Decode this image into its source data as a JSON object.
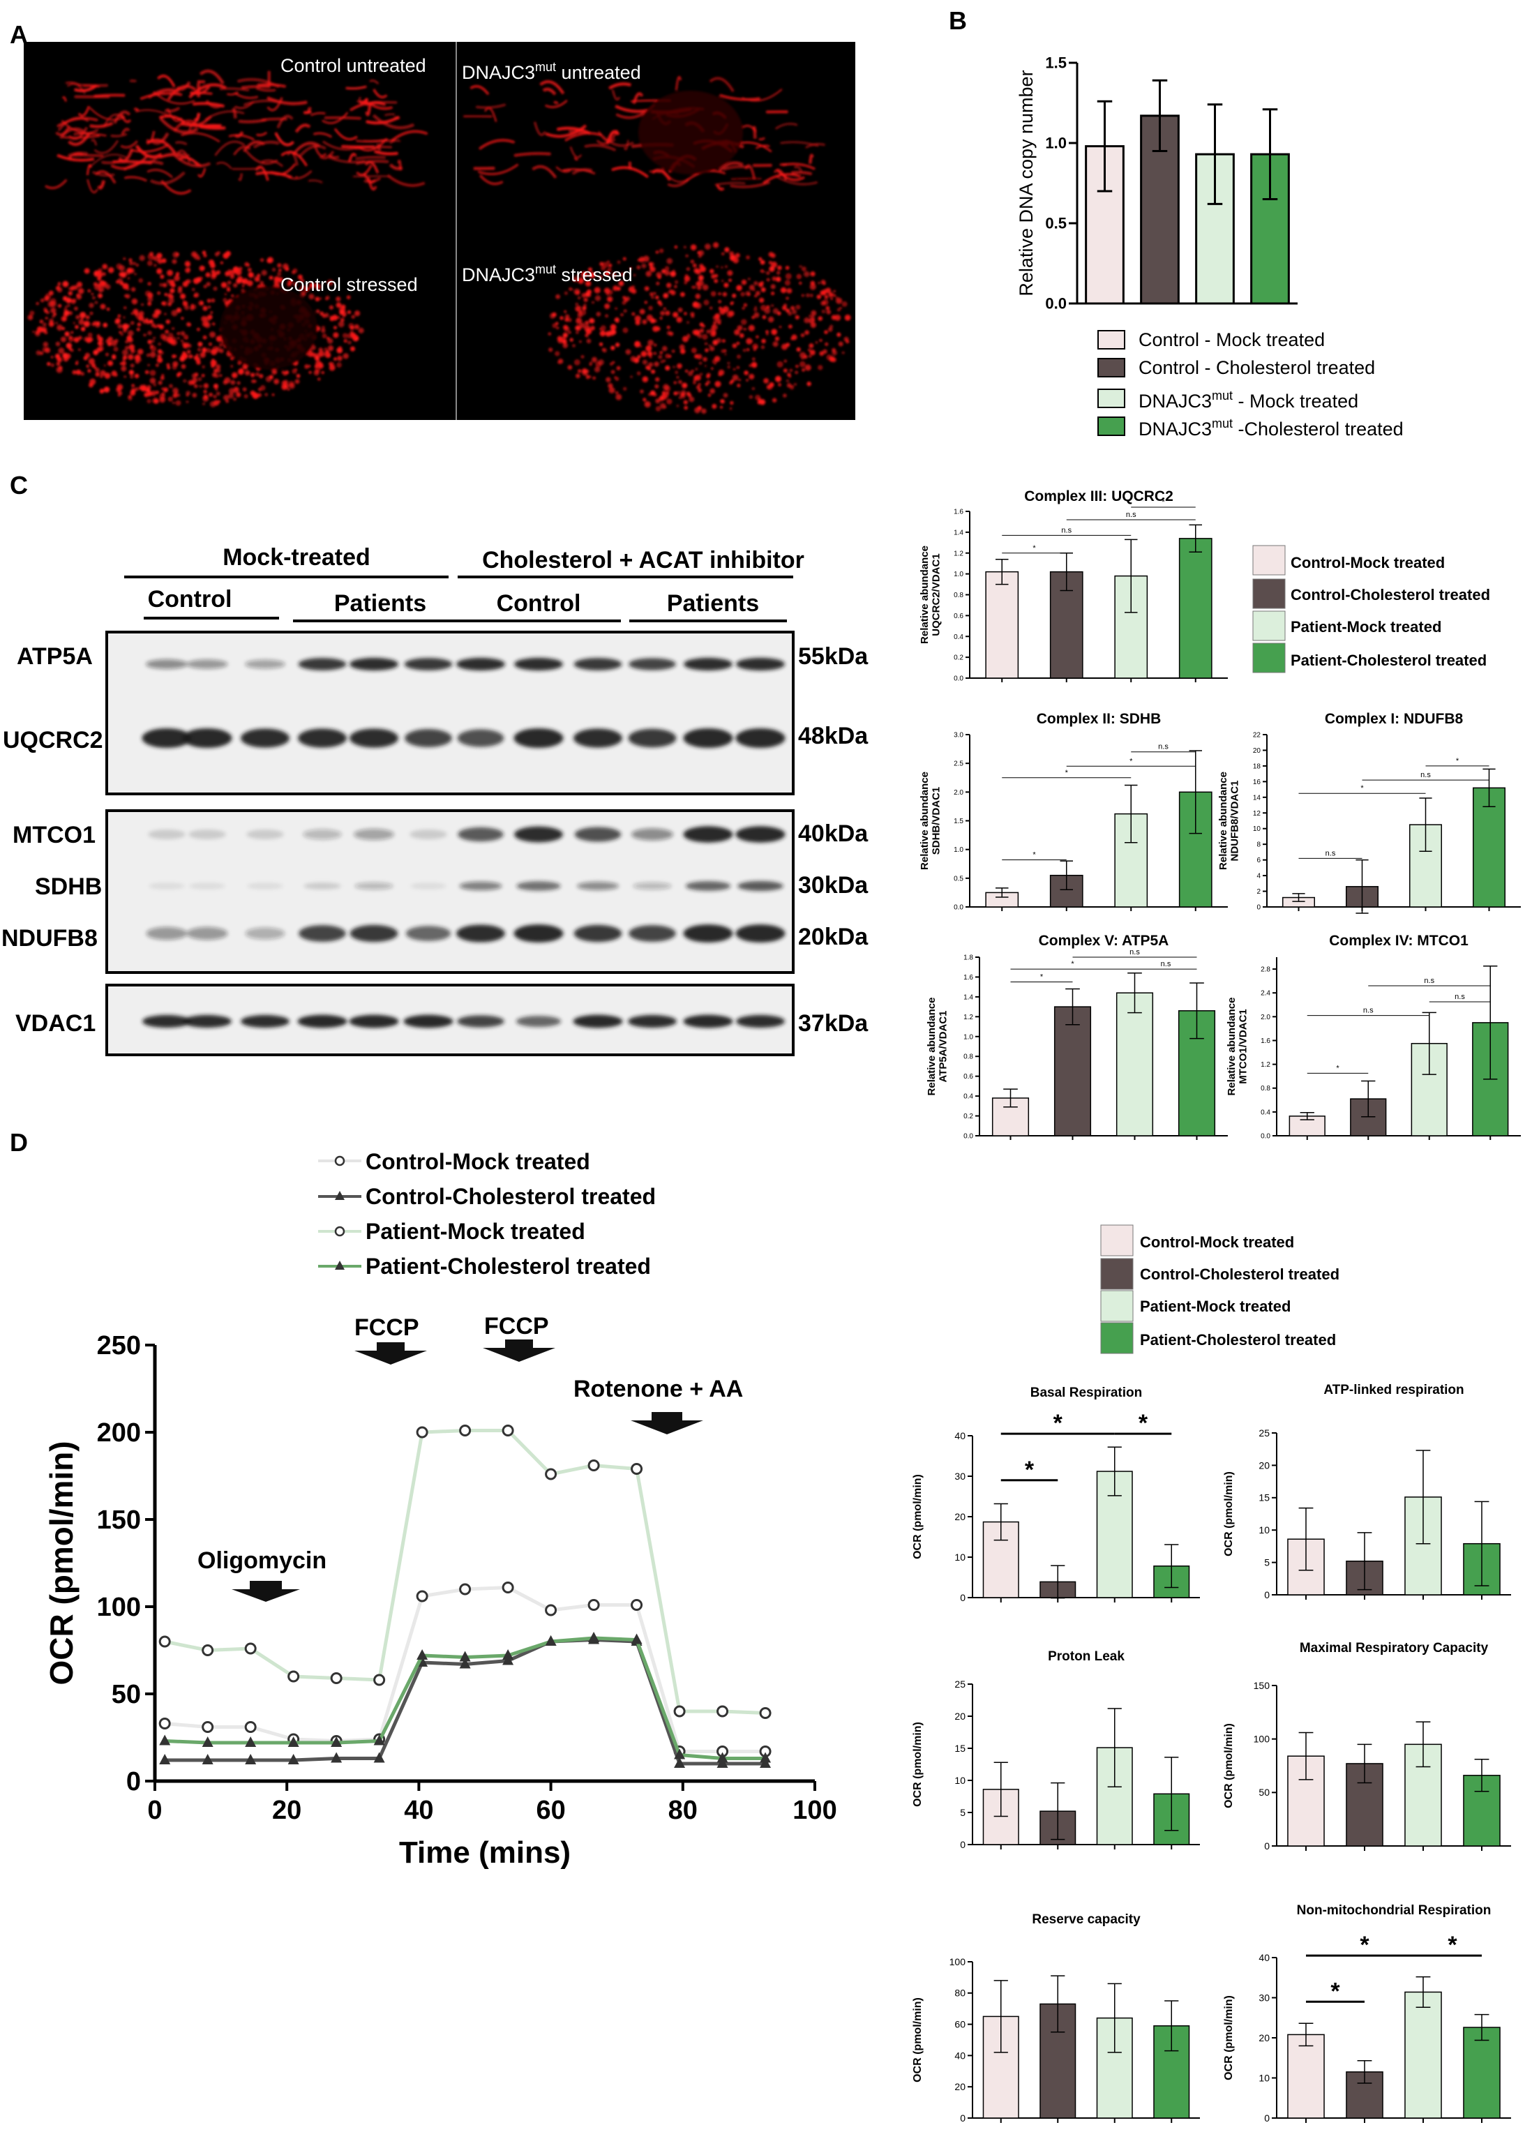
{
  "panels": {
    "A": "A",
    "B": "B",
    "C": "C",
    "D": "D"
  },
  "colors": {
    "control_mock": "#f3e6e6",
    "control_chol": "#5b4d4d",
    "patient_mock": "#dcefdc",
    "patient_chol": "#46a04f",
    "micro_red": "#ff1a1a",
    "blot_band": "#1a1a1a"
  },
  "panel_A": {
    "labels": {
      "tl": "Control untreated",
      "tr_pre": "DNAJC3",
      "tr_sup": "mut",
      "tr_post": " untreated",
      "bl": "Control stressed",
      "br_pre": "DNAJC3",
      "br_sup": "mut",
      "br_post": "   stressed"
    }
  },
  "panel_B": {
    "legend": [
      {
        "pre": "Control - Mock treated",
        "sup": "",
        "post": ""
      },
      {
        "pre": "Control - Cholesterol treated",
        "sup": "",
        "post": ""
      },
      {
        "pre": "DNAJC3",
        "sup": "mut",
        "post": " - Mock treated"
      },
      {
        "pre": "DNAJC3",
        "sup": "mut",
        "post": " -Cholesterol treated"
      }
    ]
  },
  "panel_C_blot": {
    "header_left": "Mock-treated",
    "header_right": "Cholesterol + ACAT inhibitor",
    "groups": [
      "Control",
      "Patients",
      "Control",
      "Patients"
    ],
    "proteins": [
      "ATP5A",
      "UQCRC2",
      "MTCO1",
      "SDHB",
      "NDUFB8",
      "VDAC1"
    ],
    "sizes": [
      "55kDa",
      "48kDa",
      "40kDa",
      "30kDa",
      "20kDa",
      "37kDa"
    ],
    "band_intensity": {
      "ATP5A": [
        0.45,
        0.4,
        0.35,
        0.85,
        0.9,
        0.85,
        0.9,
        0.9,
        0.85,
        0.8,
        0.9,
        0.9
      ],
      "UQCRC2": [
        0.95,
        0.95,
        0.9,
        0.9,
        0.9,
        0.8,
        0.75,
        0.95,
        0.9,
        0.85,
        0.95,
        0.95
      ],
      "MTCO1": [
        0.15,
        0.15,
        0.15,
        0.25,
        0.35,
        0.15,
        0.7,
        0.9,
        0.75,
        0.45,
        0.95,
        0.95
      ],
      "SDHB": [
        0.08,
        0.08,
        0.08,
        0.15,
        0.25,
        0.08,
        0.5,
        0.6,
        0.45,
        0.25,
        0.65,
        0.7
      ],
      "NDUFB8": [
        0.4,
        0.4,
        0.3,
        0.8,
        0.85,
        0.65,
        0.9,
        0.95,
        0.85,
        0.8,
        0.95,
        0.95
      ],
      "VDAC1": [
        0.9,
        0.9,
        0.9,
        0.95,
        0.95,
        0.95,
        0.8,
        0.65,
        0.95,
        0.9,
        0.95,
        0.9
      ]
    }
  },
  "panel_C_legend": [
    "Control-Mock treated",
    "Control-Cholesterol treated",
    "Patient-Mock treated",
    "Patient-Cholesterol treated"
  ],
  "panel_D_line_legend": [
    "Control-Mock treated",
    "Control-Cholesterol treated",
    "Patient-Mock treated",
    "Patient-Cholesterol treated"
  ],
  "panel_D_bar_legend": [
    "Control-Mock treated",
    "Control-Cholesterol treated",
    "Patient-Mock treated",
    "Patient-Cholesterol treated"
  ],
  "panel_D_annotations": {
    "oligomycin": "Oligomycin",
    "fccp1": "FCCP",
    "fccp2": "FCCP",
    "rotenone": "Rotenone + AA"
  },
  "chart_data": [
    {
      "id": "B",
      "type": "bar",
      "title": "",
      "xlabel": "",
      "ylabel": "Relative DNA copy number",
      "ylim": [
        0,
        1.5
      ],
      "yticks": [
        "0.0",
        "0.5",
        "1.0",
        "1.5"
      ],
      "values": [
        0.98,
        1.17,
        0.93,
        0.93
      ],
      "errors": [
        0.28,
        0.22,
        0.31,
        0.28
      ],
      "annotations": []
    },
    {
      "id": "C1",
      "type": "bar",
      "title": "Complex III: UQCRC2",
      "xlabel": "",
      "ylabel": "Relative abundance\nUQCRC2/VDAC1",
      "ylim": [
        0,
        1.6
      ],
      "yticks": [
        "0.0",
        "0.2",
        "0.4",
        "0.6",
        "0.8",
        "1.0",
        "1.2",
        "1.4",
        "1.6"
      ],
      "values": [
        1.02,
        1.02,
        0.98,
        1.34
      ],
      "errors": [
        0.12,
        0.18,
        0.35,
        0.13
      ],
      "annotations": [
        {
          "from": 0,
          "to": 1,
          "y": 1.2,
          "text": "*"
        },
        {
          "from": 0,
          "to": 2,
          "y": 1.37,
          "text": "n.s"
        },
        {
          "from": 1,
          "to": 3,
          "y": 1.52,
          "text": "n.s"
        },
        {
          "from": 2,
          "to": 3,
          "y": 1.64,
          "text": "*"
        }
      ]
    },
    {
      "id": "C2",
      "type": "bar",
      "title": "Complex II: SDHB",
      "xlabel": "",
      "ylabel": "Relative abundance\nSDHB/VDAC1",
      "ylim": [
        0,
        3.0
      ],
      "yticks": [
        "0.0",
        "0.5",
        "1.0",
        "1.5",
        "2.0",
        "2.5",
        "3.0"
      ],
      "values": [
        0.25,
        0.55,
        1.62,
        2.0
      ],
      "errors": [
        0.08,
        0.25,
        0.5,
        0.72
      ],
      "annotations": [
        {
          "from": 0,
          "to": 1,
          "y": 0.82,
          "text": "*"
        },
        {
          "from": 0,
          "to": 2,
          "y": 2.25,
          "text": "*"
        },
        {
          "from": 1,
          "to": 3,
          "y": 2.45,
          "text": "*"
        },
        {
          "from": 2,
          "to": 3,
          "y": 2.7,
          "text": "n.s"
        }
      ]
    },
    {
      "id": "C3",
      "type": "bar",
      "title": "Complex I: NDUFB8",
      "xlabel": "",
      "ylabel": "Relative abundance\nNDUFB8/VDAC1",
      "ylim": [
        0,
        22
      ],
      "yticks": [
        "0",
        "2",
        "4",
        "6",
        "8",
        "10",
        "12",
        "14",
        "16",
        "18",
        "20",
        "22"
      ],
      "values": [
        1.2,
        2.6,
        10.5,
        15.2
      ],
      "errors": [
        0.5,
        3.4,
        3.4,
        2.4
      ],
      "annotations": [
        {
          "from": 0,
          "to": 1,
          "y": 6.2,
          "text": "n.s"
        },
        {
          "from": 0,
          "to": 2,
          "y": 14.5,
          "text": "*"
        },
        {
          "from": 1,
          "to": 3,
          "y": 16.2,
          "text": "n.s"
        },
        {
          "from": 2,
          "to": 3,
          "y": 18.0,
          "text": "*"
        }
      ]
    },
    {
      "id": "C4",
      "type": "bar",
      "title": "Complex V: ATP5A",
      "xlabel": "",
      "ylabel": "Relative abundance\nATP5A/VDAC1",
      "ylim": [
        0,
        1.8
      ],
      "yticks": [
        "0.0",
        "0.2",
        "0.4",
        "0.6",
        "0.8",
        "1.0",
        "1.2",
        "1.4",
        "1.6",
        "1.8"
      ],
      "values": [
        0.38,
        1.3,
        1.44,
        1.26
      ],
      "errors": [
        0.09,
        0.18,
        0.2,
        0.28
      ],
      "annotations": [
        {
          "from": 0,
          "to": 1,
          "y": 1.55,
          "text": "*"
        },
        {
          "from": 0,
          "to": 2,
          "y": 1.68,
          "text": "*"
        },
        {
          "from": 1,
          "to": 3,
          "y": 1.8,
          "text": "n.s"
        },
        {
          "from": 2,
          "to": 3,
          "y": 1.68,
          "text": "n.s"
        }
      ]
    },
    {
      "id": "C5",
      "type": "bar",
      "title": "Complex IV: MTCO1",
      "xlabel": "",
      "ylabel": "Relative abundance\nMTCO1/VDAC1",
      "ylim": [
        0,
        3.0
      ],
      "yticks": [
        "0.0",
        "0.4",
        "0.8",
        "1.2",
        "1.6",
        "2.0",
        "2.4",
        "2.8"
      ],
      "values": [
        0.33,
        0.62,
        1.55,
        1.9
      ],
      "errors": [
        0.06,
        0.3,
        0.52,
        0.95
      ],
      "annotations": [
        {
          "from": 0,
          "to": 1,
          "y": 1.05,
          "text": "*"
        },
        {
          "from": 0,
          "to": 2,
          "y": 2.02,
          "text": "n.s"
        },
        {
          "from": 1,
          "to": 3,
          "y": 2.52,
          "text": "n.s"
        },
        {
          "from": 2,
          "to": 3,
          "y": 2.25,
          "text": "n.s"
        }
      ]
    },
    {
      "id": "D_line",
      "type": "line",
      "title": "",
      "xlabel": "Time (mins)",
      "ylabel": "OCR (pmol/min)",
      "xlim": [
        0,
        100
      ],
      "ylim": [
        0,
        250
      ],
      "xticks": [
        "0",
        "20",
        "40",
        "60",
        "80",
        "100"
      ],
      "yticks": [
        "0",
        "50",
        "100",
        "150",
        "200",
        "250"
      ],
      "x": [
        1.5,
        8,
        14.5,
        21,
        27.5,
        34,
        40.5,
        47,
        53.5,
        60,
        66.5,
        73,
        79.5,
        86,
        92.5
      ],
      "series": [
        {
          "name": "Control-Mock treated",
          "marker": "circle",
          "color": "#e8e8e8",
          "values": [
            33,
            31,
            31,
            24,
            23,
            24,
            106,
            110,
            111,
            98,
            101,
            101,
            17,
            17,
            17
          ]
        },
        {
          "name": "Control-Cholesterol treated",
          "marker": "triangle",
          "color": "#555555",
          "values": [
            12,
            12,
            12,
            12,
            13,
            13,
            68,
            67,
            69,
            80,
            81,
            80,
            10,
            10,
            10
          ]
        },
        {
          "name": "Patient-Mock treated",
          "marker": "circle",
          "color": "#cfe5cf",
          "values": [
            80,
            75,
            76,
            60,
            59,
            58,
            200,
            201,
            201,
            176,
            181,
            179,
            40,
            40,
            39
          ]
        },
        {
          "name": "Patient-Cholesterol treated",
          "marker": "triangle",
          "color": "#6aa86a",
          "values": [
            23,
            22,
            22,
            22,
            22,
            23,
            72,
            71,
            72,
            80,
            82,
            81,
            15,
            13,
            13
          ]
        }
      ]
    },
    {
      "id": "D1",
      "type": "bar",
      "title": "Basal Respiration",
      "xlabel": "",
      "ylabel": "OCR (pmol/min)",
      "ylim": [
        0,
        40
      ],
      "yticks": [
        "0",
        "10",
        "20",
        "30",
        "40"
      ],
      "values": [
        18.7,
        3.9,
        31.2,
        7.8
      ],
      "errors": [
        4.5,
        4.0,
        6.0,
        5.3
      ],
      "annotations": [
        {
          "from": 0,
          "to": 1,
          "y": 29,
          "text": "*",
          "bold": true
        },
        {
          "from": 0,
          "to": 2,
          "y": 40.5,
          "text": "*",
          "bold": true
        },
        {
          "from": 2,
          "to": 3,
          "y": 40.5,
          "text": "*",
          "bold": true
        }
      ]
    },
    {
      "id": "D2",
      "type": "bar",
      "title": "ATP-linked respiration",
      "xlabel": "",
      "ylabel": "OCR (pmol/min)",
      "ylim": [
        0,
        25
      ],
      "yticks": [
        "0",
        "5",
        "10",
        "15",
        "20",
        "25"
      ],
      "values": [
        8.6,
        5.2,
        15.1,
        7.9
      ],
      "errors": [
        4.8,
        4.4,
        7.2,
        6.5
      ],
      "annotations": []
    },
    {
      "id": "D3",
      "type": "bar",
      "title": "Proton Leak",
      "xlabel": "",
      "ylabel": "OCR (pmol/min)",
      "ylim": [
        0,
        25
      ],
      "yticks": [
        "0",
        "5",
        "10",
        "15",
        "20",
        "25"
      ],
      "values": [
        8.6,
        5.2,
        15.1,
        7.9
      ],
      "errors": [
        4.2,
        4.4,
        6.1,
        5.7
      ],
      "annotations": []
    },
    {
      "id": "D4",
      "type": "bar",
      "title": "Maximal Respiratory Capacity",
      "xlabel": "",
      "ylabel": "OCR (pmol/min)",
      "ylim": [
        0,
        150
      ],
      "yticks": [
        "0",
        "50",
        "100",
        "150"
      ],
      "values": [
        84,
        77,
        95,
        66
      ],
      "errors": [
        22,
        18,
        21,
        15
      ],
      "annotations": []
    },
    {
      "id": "D5",
      "type": "bar",
      "title": "Reserve capacity",
      "xlabel": "",
      "ylabel": "OCR (pmol/min)",
      "ylim": [
        0,
        100
      ],
      "yticks": [
        "0",
        "20",
        "40",
        "60",
        "80",
        "100"
      ],
      "values": [
        65,
        73,
        64,
        59
      ],
      "errors": [
        23,
        18,
        22,
        16
      ],
      "annotations": []
    },
    {
      "id": "D6",
      "type": "bar",
      "title": "Non-mitochondrial Respiration",
      "xlabel": "",
      "ylabel": "OCR (pmol/min)",
      "ylim": [
        0,
        40
      ],
      "yticks": [
        "0",
        "10",
        "20",
        "30",
        "40"
      ],
      "values": [
        20.8,
        11.5,
        31.4,
        22.6
      ],
      "errors": [
        2.8,
        2.8,
        3.8,
        3.2
      ],
      "annotations": [
        {
          "from": 0,
          "to": 1,
          "y": 29,
          "text": "*",
          "bold": true
        },
        {
          "from": 0,
          "to": 2,
          "y": 40.5,
          "text": "*",
          "bold": true
        },
        {
          "from": 2,
          "to": 3,
          "y": 40.5,
          "text": "*",
          "bold": true
        }
      ]
    }
  ]
}
